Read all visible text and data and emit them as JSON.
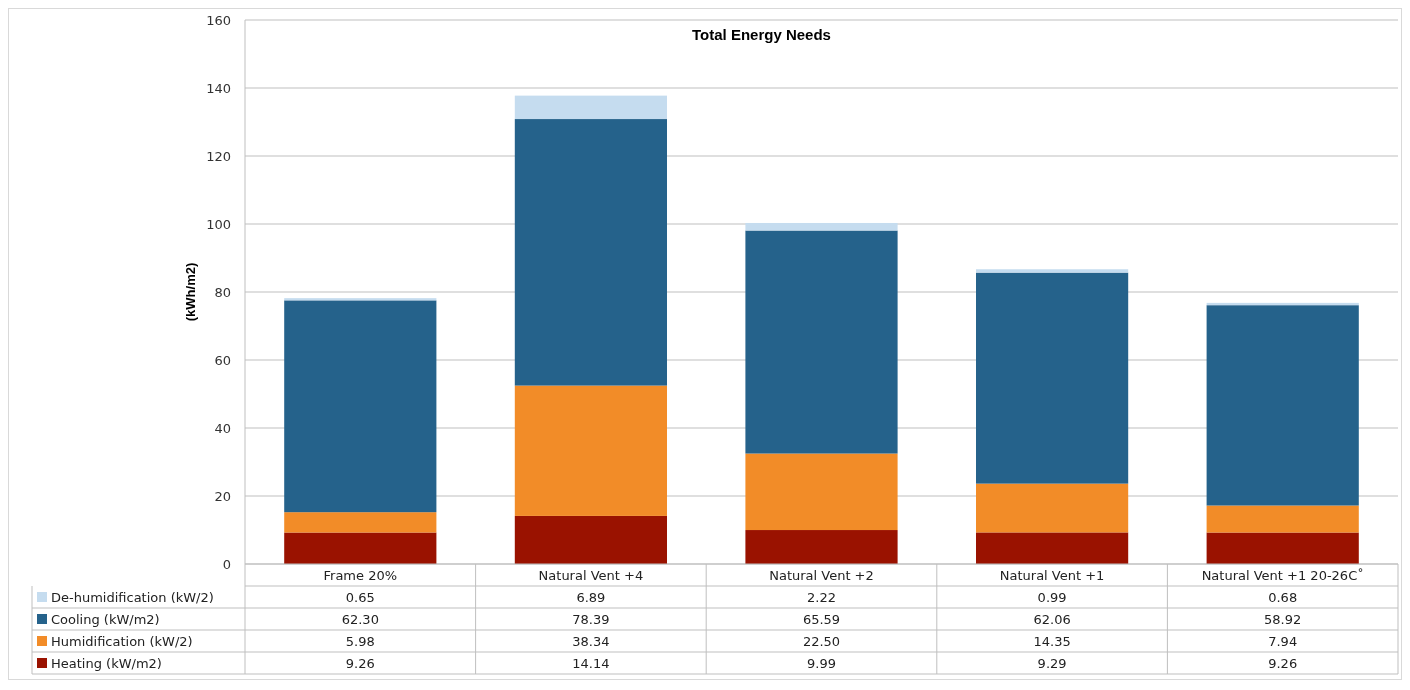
{
  "chart_data": {
    "type": "bar",
    "title": "Total Energy Needs",
    "ylabel": "(kWh/m2)",
    "stacked": true,
    "categories": [
      "Frame 20%",
      "Natural Vent +4",
      "Natural Vent +2",
      "Natural Vent +1",
      "Natural Vent +1 20-26C˚"
    ],
    "series": [
      {
        "name": "Heating (kW/m2)",
        "color": "#9a1200",
        "values": [
          9.26,
          14.14,
          9.99,
          9.29,
          9.26
        ],
        "value_labels": [
          "9.26",
          "14.14",
          "9.99",
          "9.29",
          "9.26"
        ]
      },
      {
        "name": "Humidification (kW/2)",
        "color": "#f28c28",
        "values": [
          5.98,
          38.34,
          22.5,
          14.35,
          7.94
        ],
        "value_labels": [
          "5.98",
          "38.34",
          "22.50",
          "14.35",
          "7.94"
        ]
      },
      {
        "name": "Cooling (kW/m2)",
        "color": "#25628b",
        "values": [
          62.3,
          78.39,
          65.59,
          62.06,
          58.92
        ],
        "value_labels": [
          "62.30",
          "78.39",
          "65.59",
          "62.06",
          "58.92"
        ]
      },
      {
        "name": "De-humidification (kW/2)",
        "color": "#c5dcef",
        "values": [
          0.65,
          6.89,
          2.22,
          0.99,
          0.68
        ],
        "value_labels": [
          "0.65",
          "6.89",
          "2.22",
          "0.99",
          "0.68"
        ]
      }
    ],
    "ylim": [
      0,
      160
    ],
    "yticks": [
      0,
      20,
      40,
      60,
      80,
      100,
      120,
      140,
      160
    ],
    "grid": "y",
    "legend": "bottom"
  }
}
